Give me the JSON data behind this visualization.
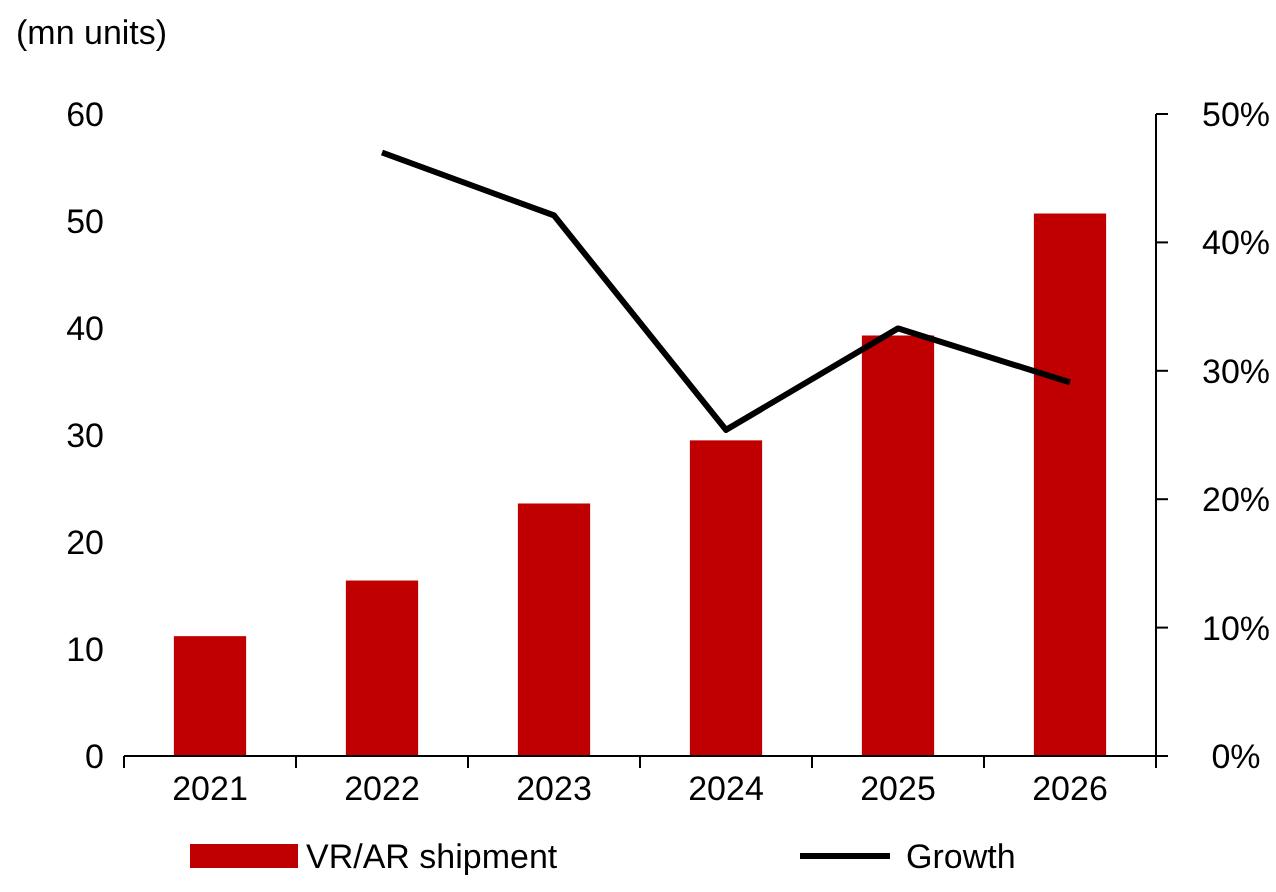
{
  "chart_data": {
    "type": "bar",
    "ylabel": "(mn units)",
    "categories": [
      "2021",
      "2022",
      "2023",
      "2024",
      "2025",
      "2026"
    ],
    "series": [
      {
        "name": "VR/AR shipment",
        "color": "#c00000",
        "values": [
          11.2,
          16.4,
          23.6,
          29.5,
          39.3,
          50.7
        ]
      },
      {
        "name": "Growth",
        "type": "line",
        "color": "#000000",
        "axis": "y2",
        "values": [
          null,
          47.0,
          42.1,
          25.4,
          33.3,
          29.1
        ]
      }
    ],
    "ylim": [
      0,
      60
    ],
    "yticks": [
      0,
      10,
      20,
      30,
      40,
      50,
      60
    ],
    "y2lim": [
      0,
      50
    ],
    "y2ticks": [
      {
        "value": 0,
        "label": "0%"
      },
      {
        "value": 10,
        "label": "10%"
      },
      {
        "value": 20,
        "label": "20%"
      },
      {
        "value": 30,
        "label": "30%"
      },
      {
        "value": 40,
        "label": "40%"
      },
      {
        "value": 50,
        "label": "50%"
      }
    ],
    "legend": "bottom",
    "marker": "none",
    "line_style": "solid",
    "grid": false
  }
}
